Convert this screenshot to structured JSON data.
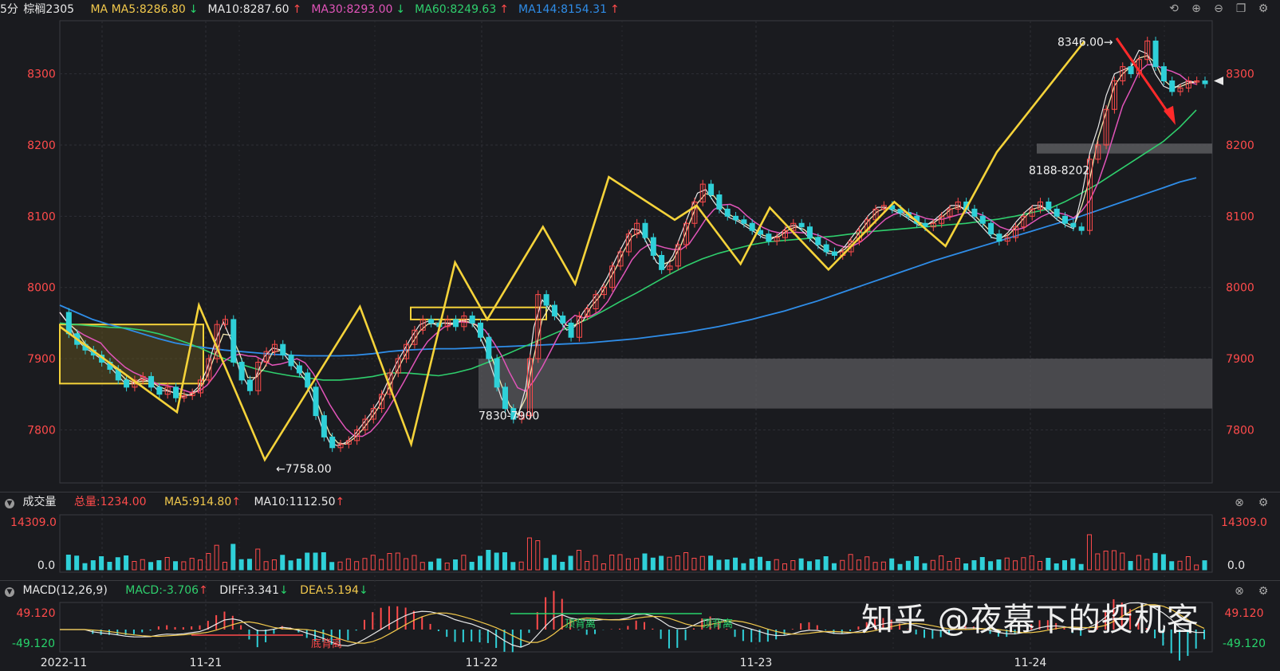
{
  "header": {
    "period": "5分",
    "symbol": "棕榈2305",
    "ma_label": "MA",
    "ma": [
      {
        "text": "MA5:8286.80",
        "arrow": "↓",
        "color": "#f2c94c",
        "arrow_color": "#27d36b"
      },
      {
        "text": "MA10:8287.60",
        "arrow": "↑",
        "color": "#e8e8e8",
        "arrow_color": "#ff4b4b"
      },
      {
        "text": "MA30:8293.00",
        "arrow": "↓",
        "color": "#e154b9",
        "arrow_color": "#27d36b"
      },
      {
        "text": "MA60:8249.63",
        "arrow": "↑",
        "color": "#2fcf6d",
        "arrow_color": "#ff4b4b"
      },
      {
        "text": "MA144:8154.31",
        "arrow": "↑",
        "color": "#2f8de8",
        "arrow_color": "#ff4b4b"
      }
    ],
    "toolbar_icons": [
      "undo-icon",
      "zoom-in-icon",
      "zoom-out-icon",
      "window-icon",
      "settings-icon"
    ]
  },
  "volume": {
    "title": "成交量",
    "total": "总量:1234.00",
    "ma5": "MA5:914.80",
    "ma10": "MA10:1112.50",
    "arrow1": "↑",
    "arrow2": "↑",
    "ytop": "14309.0",
    "ybottom": "0.0"
  },
  "macd": {
    "title": "MACD(12,26,9)",
    "macd": "MACD:-3.706",
    "diff": "DIFF:3.341",
    "dea": "DEA:5.194",
    "arrow_macd": "↑",
    "arrow_diff": "↓",
    "arrow_dea": "↓",
    "ytop": "49.120",
    "ybottom": "-49.120",
    "div_labels": [
      "底背离",
      "顶背离",
      "顶背离"
    ]
  },
  "watermark": "知乎 @夜幕下的投机客",
  "colors": {
    "up": "#ff4b4b",
    "down": "#2fd0d8",
    "zig": "#f5d33a",
    "box": "#5a5a5e"
  },
  "chart_data": {
    "type": "line",
    "title": "棕榈2305 5分",
    "x_ticks": [
      "2022-11",
      "11-21",
      "11-22",
      "11-23",
      "11-24"
    ],
    "y_ticks": [
      7800,
      7900,
      8000,
      8100,
      8200,
      8300
    ],
    "ylim": [
      7730,
      8370
    ],
    "annotations": [
      "8346.00",
      "7758.00",
      "7830-7900",
      "8188-8202"
    ],
    "zigzag": [
      [
        0,
        7945
      ],
      [
        8,
        7825
      ],
      [
        9.5,
        7975
      ],
      [
        14,
        7758
      ],
      [
        20.5,
        7973
      ],
      [
        24,
        7780
      ],
      [
        27,
        8035
      ],
      [
        29.2,
        7955
      ],
      [
        33,
        8085
      ],
      [
        35.2,
        8005
      ],
      [
        37.5,
        8155
      ],
      [
        42,
        8095
      ],
      [
        43.5,
        8115
      ],
      [
        46.5,
        8033
      ],
      [
        48.5,
        8112
      ],
      [
        52.5,
        8025
      ],
      [
        57,
        8120
      ],
      [
        60.5,
        8058
      ],
      [
        64,
        8190
      ],
      [
        70,
        8346
      ]
    ],
    "close": [
      7965,
      7935,
      7920,
      7912,
      7905,
      7895,
      7885,
      7870,
      7860,
      7870,
      7875,
      7860,
      7850,
      7860,
      7845,
      7848,
      7852,
      7870,
      7900,
      7948,
      7955,
      7895,
      7870,
      7855,
      7895,
      7910,
      7920,
      7905,
      7890,
      7880,
      7860,
      7820,
      7790,
      7775,
      7780,
      7785,
      7800,
      7815,
      7830,
      7850,
      7880,
      7900,
      7920,
      7940,
      7955,
      7950,
      7945,
      7955,
      7945,
      7960,
      7950,
      7930,
      7900,
      7860,
      7830,
      7815,
      7820,
      7900,
      7990,
      7975,
      7960,
      7950,
      7930,
      7960,
      7970,
      7990,
      8000,
      8030,
      8050,
      8075,
      8090,
      8070,
      8045,
      8025,
      8030,
      8060,
      8090,
      8120,
      8145,
      8130,
      8110,
      8100,
      8095,
      8090,
      8080,
      8075,
      8065,
      8070,
      8080,
      8090,
      8085,
      8070,
      8060,
      8050,
      8045,
      8050,
      8065,
      8080,
      8095,
      8110,
      8115,
      8110,
      8105,
      8100,
      8090,
      8085,
      8090,
      8100,
      8110,
      8120,
      8110,
      8100,
      8090,
      8075,
      8065,
      8070,
      8085,
      8100,
      8110,
      8120,
      8110,
      8100,
      8090,
      8085,
      8080,
      8180,
      8200,
      8250,
      8290,
      8310,
      8300,
      8320,
      8346,
      8310,
      8290,
      8275,
      8280,
      8290,
      8290,
      8286
    ],
    "ma144": [
      7975,
      7965,
      7955,
      7948,
      7942,
      7935,
      7928,
      7922,
      7918,
      7915,
      7912,
      7910,
      7908,
      7906,
      7905,
      7904,
      7904,
      7904,
      7905,
      7907,
      7910,
      7912,
      7913,
      7914,
      7914,
      7915,
      7916,
      7917,
      7918,
      7919,
      7920,
      7921,
      7922,
      7924,
      7926,
      7928,
      7931,
      7934,
      7937,
      7941,
      7945,
      7950,
      7955,
      7961,
      7967,
      7974,
      7981,
      7989,
      7997,
      8005,
      8013,
      8021,
      8029,
      8037,
      8044,
      8051,
      8058,
      8065,
      8072,
      8079,
      8086,
      8093,
      8100,
      8108,
      8116,
      8124,
      8132,
      8140,
      8148,
      8154
    ],
    "ma60": [
      7950,
      7948,
      7946,
      7944,
      7943,
      7940,
      7935,
      7928,
      7920,
      7910,
      7900,
      7892,
      7885,
      7880,
      7876,
      7873,
      7870,
      7870,
      7872,
      7875,
      7880,
      7880,
      7878,
      7876,
      7880,
      7886,
      7895,
      7905,
      7915,
      7925,
      7935,
      7945,
      7955,
      7967,
      7980,
      7992,
      8005,
      8018,
      8030,
      8040,
      8048,
      8054,
      8060,
      8064,
      8066,
      8068,
      8070,
      8072,
      8075,
      8078,
      8080,
      8082,
      8084,
      8086,
      8088,
      8090,
      8093,
      8096,
      8100,
      8105,
      8110,
      8120,
      8132,
      8145,
      8160,
      8175,
      8190,
      8205,
      8225,
      8249
    ]
  }
}
